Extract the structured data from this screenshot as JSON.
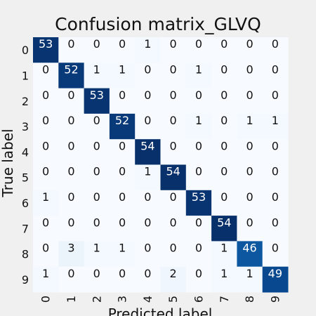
{
  "chart_data": {
    "type": "heatmap",
    "title": "Confusion matrix_GLVQ",
    "xlabel": "Predicted label",
    "ylabel": "True label",
    "x_ticks": [
      "0",
      "1",
      "2",
      "3",
      "4",
      "5",
      "6",
      "7",
      "8",
      "9"
    ],
    "y_ticks": [
      "0",
      "1",
      "2",
      "3",
      "4",
      "5",
      "6",
      "7",
      "8",
      "9"
    ],
    "matrix": [
      [
        53,
        0,
        0,
        0,
        1,
        0,
        0,
        0,
        0,
        0
      ],
      [
        0,
        52,
        1,
        1,
        0,
        0,
        1,
        0,
        0,
        0
      ],
      [
        0,
        0,
        53,
        0,
        0,
        0,
        0,
        0,
        0,
        0
      ],
      [
        0,
        0,
        0,
        52,
        0,
        0,
        1,
        0,
        1,
        1
      ],
      [
        0,
        0,
        0,
        0,
        54,
        0,
        0,
        0,
        0,
        0
      ],
      [
        0,
        0,
        0,
        0,
        1,
        54,
        0,
        0,
        0,
        0
      ],
      [
        1,
        0,
        0,
        0,
        0,
        0,
        53,
        0,
        0,
        0
      ],
      [
        0,
        0,
        0,
        0,
        0,
        0,
        0,
        54,
        0,
        0
      ],
      [
        0,
        3,
        1,
        1,
        0,
        0,
        0,
        1,
        46,
        0
      ],
      [
        1,
        0,
        0,
        0,
        0,
        2,
        0,
        1,
        1,
        49
      ]
    ],
    "colormap": "Blues",
    "colors": {
      "low": "#f7fbff",
      "high": "#08306b",
      "background": "#f0f0f0"
    },
    "grid": false
  }
}
